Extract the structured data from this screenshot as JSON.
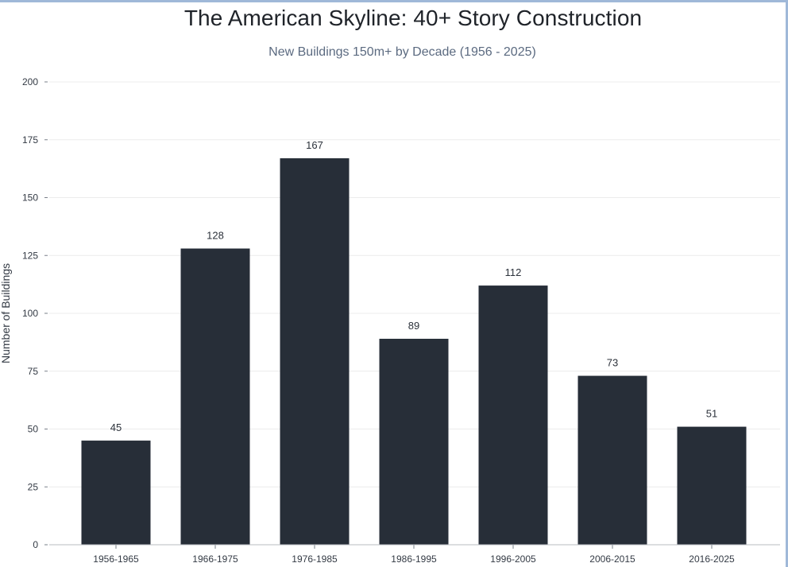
{
  "chart_data": {
    "type": "bar",
    "title": "The American Skyline: 40+ Story Construction",
    "subtitle": "New Buildings 150m+ by Decade (1956 - 2025)",
    "xlabel": "",
    "ylabel": "Number of Buildings",
    "categories": [
      "1956-1965",
      "1966-1975",
      "1976-1985",
      "1986-1995",
      "1996-2005",
      "2006-2015",
      "2016-2025"
    ],
    "values": [
      45,
      128,
      167,
      89,
      112,
      73,
      51
    ],
    "ylim": [
      0,
      200
    ],
    "yticks": [
      0,
      25,
      50,
      75,
      100,
      125,
      150,
      175,
      200
    ],
    "grid": true,
    "colors": {
      "bar": "#272e38",
      "grid": "#ececec",
      "axis": "#b8bcc2"
    }
  }
}
